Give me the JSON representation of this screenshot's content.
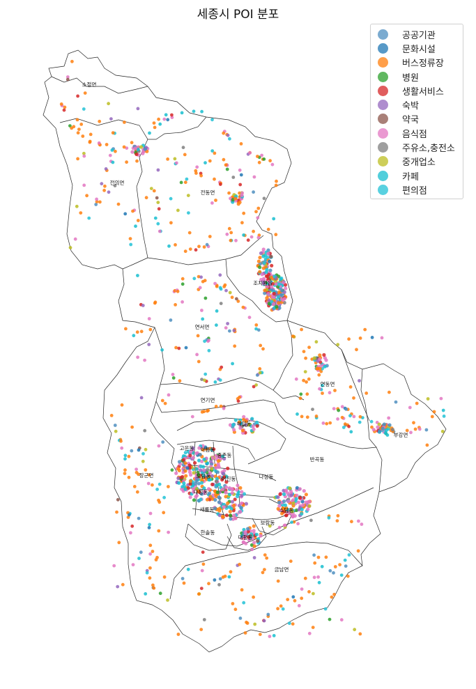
{
  "title": "세종시 POI 분포",
  "legend": [
    {
      "label": "공공기관",
      "color": "#4f8fc0"
    },
    {
      "label": "문화시설",
      "color": "#1f77b4"
    },
    {
      "label": "버스정류장",
      "color": "#ff7f0e"
    },
    {
      "label": "병원",
      "color": "#2ca02c"
    },
    {
      "label": "생활서비스",
      "color": "#d62728"
    },
    {
      "label": "숙박",
      "color": "#9467bd"
    },
    {
      "label": "약국",
      "color": "#8c564b"
    },
    {
      "label": "음식점",
      "color": "#e377c2"
    },
    {
      "label": "주유소,충전소",
      "color": "#7f7f7f"
    },
    {
      "label": "중개업소",
      "color": "#bcbd22"
    },
    {
      "label": "카페",
      "color": "#17becf"
    },
    {
      "label": "편의점",
      "color": "#22c2d6"
    }
  ],
  "districts": [
    "소정면",
    "전의면",
    "전동면",
    "조치원읍",
    "연서면",
    "연동면",
    "연기면",
    "해밀동",
    "반곡동",
    "부강면",
    "고운동",
    "아름동",
    "종촌동",
    "도담동",
    "장군면",
    "다정동",
    "어진동",
    "나성동",
    "새롬동",
    "한솔동",
    "대평동",
    "보람동",
    "소담동",
    "금남면"
  ]
}
